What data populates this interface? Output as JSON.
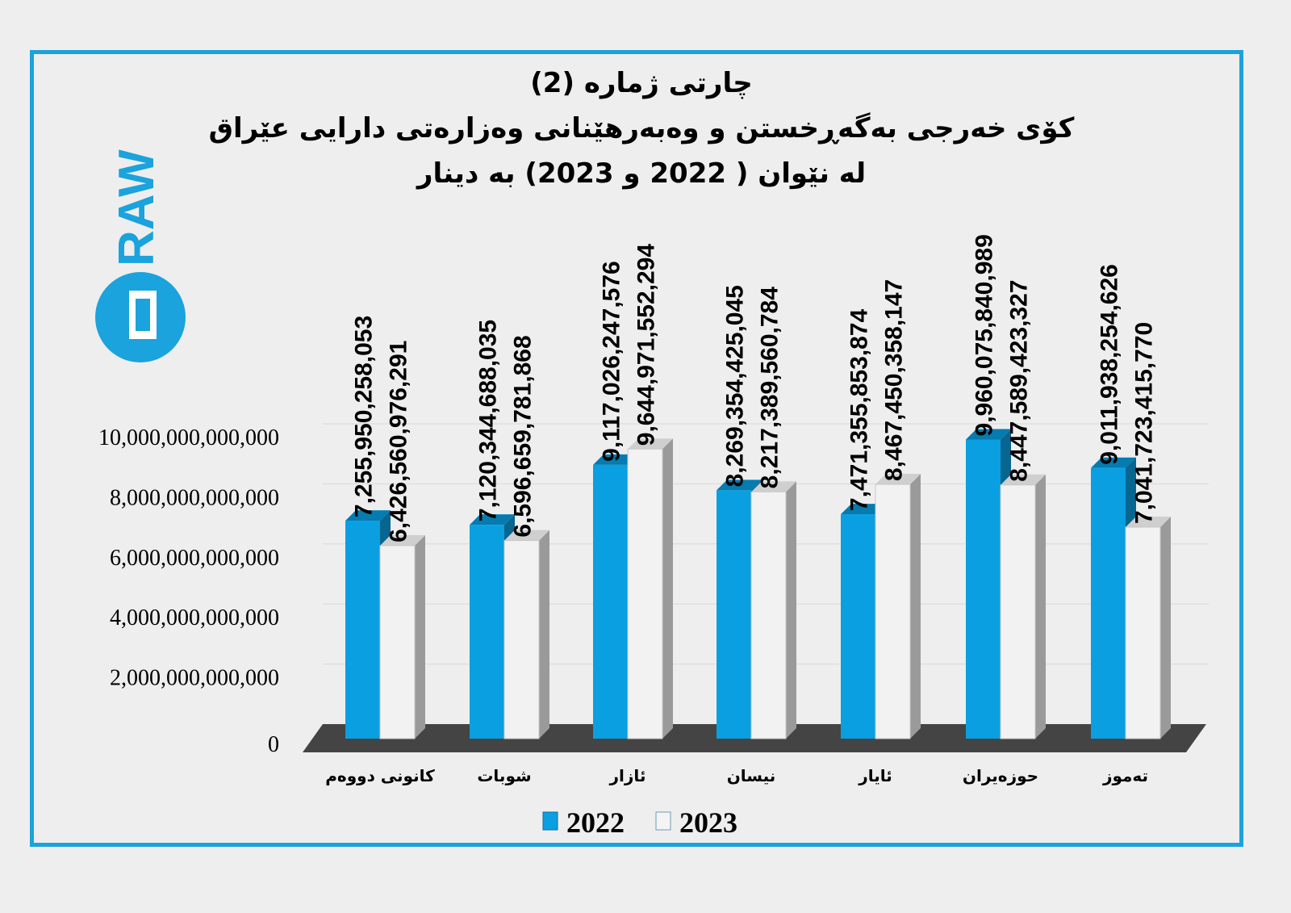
{
  "logo": "DRAW",
  "colors": {
    "y2022": "#0a9fe0",
    "y2023": "#f2f2f2",
    "frame": "#1aa3dc"
  },
  "chart_data": {
    "type": "bar",
    "title": "چارتی ژمارە (2)",
    "subtitle1": "کۆی خەرجی بەگەڕخستن و وەبەرهێنانی وەزارەتی دارایی عێراق",
    "subtitle2": "لە نێوان ( 2022 و 2023)  بە دینار",
    "categories": [
      "کانونی دووەم",
      "شوبات",
      "ئازار",
      "نیسان",
      "ئایار",
      "حوزەیران",
      "تەموز"
    ],
    "series": [
      {
        "name": "2022",
        "values": [
          7255950258053,
          7120344688035,
          9117026247576,
          8269354425045,
          7471355853874,
          9960075840989,
          9011938254626
        ],
        "labels": [
          "7,255,950,258,053",
          "7,120,344,688,035",
          "9,117,026,247,576",
          "8,269,354,425,045",
          "7,471,355,853,874",
          "9,960,075,840,989",
          "9,011,938,254,626"
        ]
      },
      {
        "name": "2023",
        "values": [
          6426560976291,
          6596659781868,
          9644971552294,
          8217389560784,
          8467450358147,
          8447589423327,
          7041723415770
        ],
        "labels": [
          "6,426,560,976,291",
          "6,596,659,781,868",
          "9,644,971,552,294",
          "8,217,389,560,784",
          "8,467,450,358,147",
          "8,447,589,423,327",
          "7,041,723,415,770"
        ]
      }
    ],
    "yticks": [
      "0",
      "2,000,000,000,000",
      "4,000,000,000,000",
      "6,000,000,000,000",
      "8,000,000,000,000",
      "10,000,000,000,000"
    ],
    "ylim": [
      0,
      10000000000000
    ],
    "grid": true,
    "legend": "bottom"
  }
}
